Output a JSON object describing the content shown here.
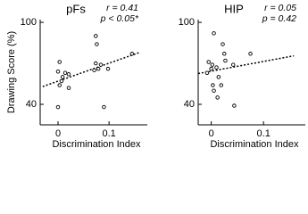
{
  "chart_data": [
    {
      "type": "scatter",
      "title": "pFs",
      "annotations": [
        "r = 0.41",
        "p < 0.05*"
      ],
      "xlabel": "Discrimination Index",
      "ylabel": "Drawing Score (%)",
      "x": [
        0.003,
        0.0,
        0.003,
        0.0,
        0.009,
        0.014,
        0.021,
        0.007,
        0.021,
        0.074,
        0.076,
        0.074,
        0.079,
        0.071,
        0.084,
        0.09,
        0.098,
        0.145
      ],
      "y": [
        71,
        64,
        54,
        38,
        60,
        63,
        62,
        57,
        52,
        90,
        84,
        70,
        66,
        65,
        69,
        38,
        66,
        77
      ],
      "fit": {
        "x": [
          -0.03,
          0.16
        ],
        "y": [
          53,
          78
        ]
      },
      "xlim": [
        -0.035,
        0.175
      ],
      "ylim": [
        25,
        102
      ],
      "xticks": [
        0,
        0.1
      ],
      "yticks": [
        40,
        100
      ],
      "color": "#000000"
    },
    {
      "type": "scatter",
      "title": "HIP",
      "annotations": [
        "r = 0.05",
        "p = 0.42"
      ],
      "xlabel": "Discrimination Index",
      "x": [
        0.005,
        -0.005,
        0.0,
        -0.008,
        0.002,
        0.01,
        0.003,
        0.005,
        0.014,
        0.019,
        0.012,
        0.022,
        0.025,
        0.027,
        0.044,
        0.042,
        0.075
      ],
      "y": [
        92,
        71,
        66,
        63,
        69,
        67,
        54,
        50,
        60,
        54,
        45,
        84,
        77,
        72,
        39,
        69,
        77
      ],
      "fit": {
        "x": [
          -0.025,
          0.158
        ],
        "y": [
          62.5,
          75.5
        ]
      },
      "xlim": [
        -0.025,
        0.18
      ],
      "ylim": [
        25,
        102
      ],
      "xticks": [
        0,
        0.1
      ],
      "yticks": [
        40,
        100
      ],
      "color": "#000000"
    }
  ]
}
